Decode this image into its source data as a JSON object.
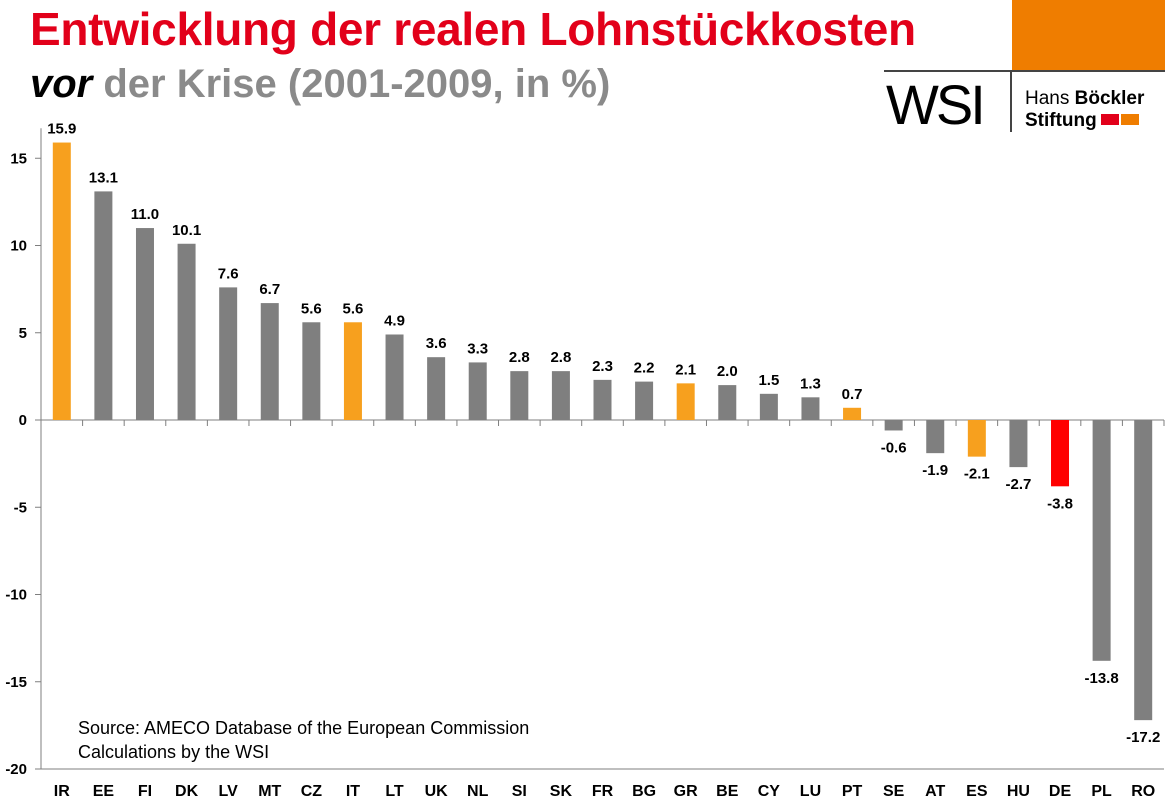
{
  "header": {
    "title_line1": "Entwicklung der realen Lohnstückkosten",
    "title_line2_emph": "vor",
    "title_line2_rest": " der Krise (2001-2009, in %)"
  },
  "logo": {
    "wsi": "WSI",
    "hans": "Hans ",
    "boeckler": "Böckler",
    "stiftung": "Stiftung",
    "colors": {
      "red": "#e2001a",
      "orange": "#ef7d00"
    }
  },
  "source": {
    "line1": "Source: AMECO Database of the European Commission",
    "line2": "Calculations by the WSI"
  },
  "chart_data": {
    "type": "bar",
    "title": "",
    "xlabel": "",
    "ylabel": "",
    "ylim": [
      -20,
      15
    ],
    "yticks": [
      15,
      10,
      5,
      0,
      -5,
      -10,
      -15,
      -20
    ],
    "categories": [
      "IR",
      "EE",
      "FI",
      "DK",
      "LV",
      "MT",
      "CZ",
      "IT",
      "LT",
      "UK",
      "NL",
      "SI",
      "SK",
      "FR",
      "BG",
      "GR",
      "BE",
      "CY",
      "LU",
      "PT",
      "SE",
      "AT",
      "ES",
      "HU",
      "DE",
      "PL",
      "RO"
    ],
    "values": [
      15.9,
      13.1,
      11.0,
      10.1,
      7.6,
      6.7,
      5.6,
      5.6,
      4.9,
      3.6,
      3.3,
      2.8,
      2.8,
      2.3,
      2.2,
      2.1,
      2.0,
      1.5,
      1.3,
      0.7,
      -0.6,
      -1.9,
      -2.1,
      -2.7,
      -3.8,
      -13.8,
      -17.2
    ],
    "value_labels": [
      "15.9",
      "13.1",
      "11.0",
      "10.1",
      "7.6",
      "6.7",
      "5.6",
      "5.6",
      "4.9",
      "3.6",
      "3.3",
      "2.8",
      "2.8",
      "2.3",
      "2.2",
      "2.1",
      "2.0",
      "1.5",
      "1.3",
      "0.7",
      "-0.6",
      "-1.9",
      "-2.1",
      "-2.7",
      "-3.8",
      "-13.8",
      "-17.2"
    ],
    "bar_colors": [
      "#f7a01e",
      "#7f7f7f",
      "#7f7f7f",
      "#7f7f7f",
      "#7f7f7f",
      "#7f7f7f",
      "#7f7f7f",
      "#f7a01e",
      "#7f7f7f",
      "#7f7f7f",
      "#7f7f7f",
      "#7f7f7f",
      "#7f7f7f",
      "#7f7f7f",
      "#7f7f7f",
      "#f7a01e",
      "#7f7f7f",
      "#7f7f7f",
      "#7f7f7f",
      "#f7a01e",
      "#7f7f7f",
      "#7f7f7f",
      "#f7a01e",
      "#7f7f7f",
      "#ff0000",
      "#7f7f7f",
      "#7f7f7f"
    ],
    "grid": false,
    "legend": "none"
  }
}
